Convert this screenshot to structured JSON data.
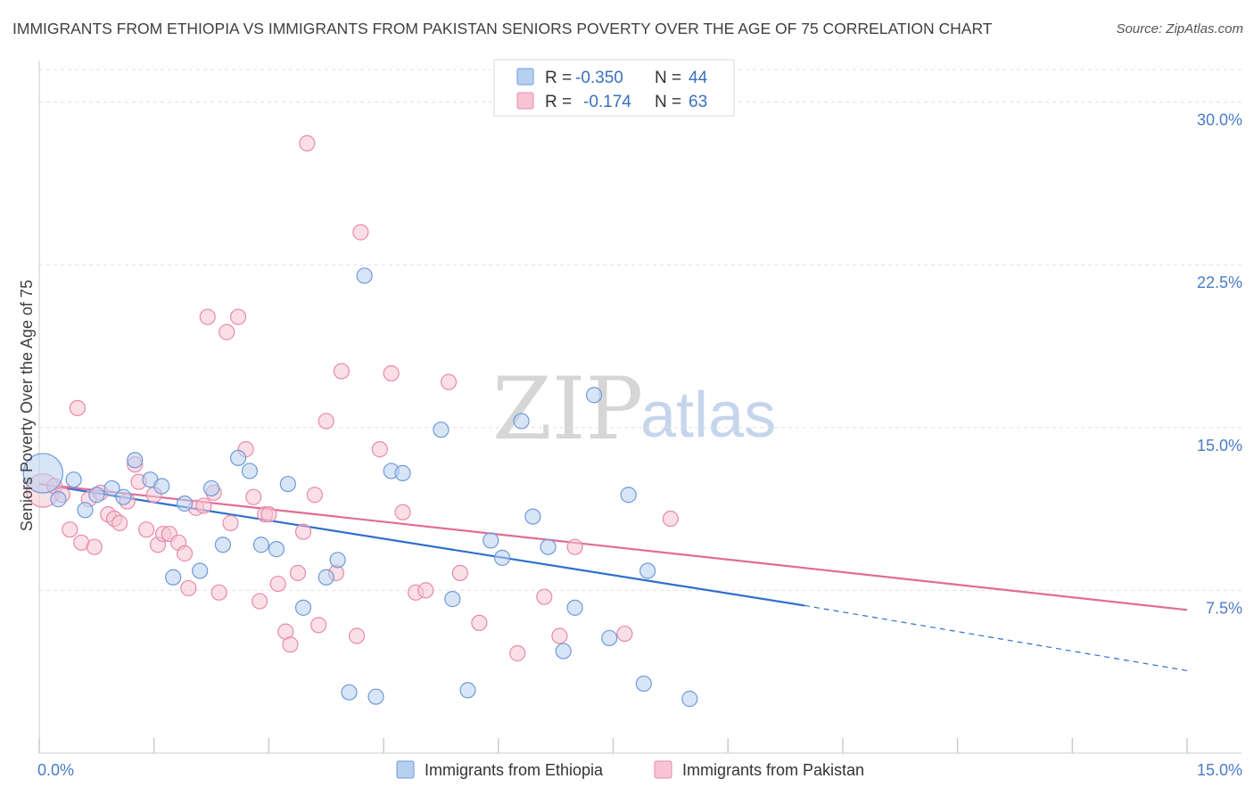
{
  "header": {
    "title": "IMMIGRANTS FROM ETHIOPIA VS IMMIGRANTS FROM PAKISTAN SENIORS POVERTY OVER THE AGE OF 75 CORRELATION CHART",
    "source": "Source: ZipAtlas.com"
  },
  "watermark": {
    "zip": "ZIP",
    "atlas": "atlas"
  },
  "legend": {
    "rows": [
      {
        "r_label": "R =",
        "r_value": "-0.350",
        "n_label": "N =",
        "n_value": "44"
      },
      {
        "r_label": "R =",
        "r_value": "-0.174",
        "n_label": "N =",
        "n_value": "63"
      }
    ]
  },
  "colors": {
    "ethiopia_fill": "#b8d0f0",
    "ethiopia_stroke": "#6f9ad8",
    "ethiopia_line": "#2f6fcc",
    "pakistan_fill": "#f7c4d4",
    "pakistan_stroke": "#e88aa8",
    "pakistan_line": "#e06c98",
    "grid": "#e0e0e0",
    "tick_label": "#4a7cc4"
  },
  "chart_data": {
    "type": "scatter",
    "title": "IMMIGRANTS FROM ETHIOPIA VS IMMIGRANTS FROM PAKISTAN SENIORS POVERTY OVER THE AGE OF 75 CORRELATION CHART",
    "xlabel": "",
    "ylabel": "Seniors Poverty Over the Age of 75",
    "xlim": [
      0,
      15
    ],
    "ylim": [
      0,
      31.5
    ],
    "x_tick_labels": [
      "0.0%",
      "15.0%"
    ],
    "y_ticks": [
      7.5,
      15.0,
      22.5,
      30.0
    ],
    "y_tick_labels": [
      "7.5%",
      "15.0%",
      "22.5%",
      "30.0%"
    ],
    "grid": true,
    "series": [
      {
        "name": "Immigrants from Ethiopia",
        "R": -0.35,
        "N": 44,
        "trend": {
          "x0": 0,
          "y0": 12.4,
          "x1": 10.0,
          "y1": 6.8,
          "dash_to_x": 15.0,
          "dash_to_y": 3.8
        },
        "points": [
          [
            0.05,
            12.9,
            2.6
          ],
          [
            0.25,
            11.7,
            1
          ],
          [
            0.45,
            12.6,
            1
          ],
          [
            0.6,
            11.2,
            1
          ],
          [
            0.75,
            11.9,
            1
          ],
          [
            0.95,
            12.2,
            1
          ],
          [
            1.1,
            11.8,
            1
          ],
          [
            1.25,
            13.5,
            1
          ],
          [
            1.45,
            12.6,
            1
          ],
          [
            1.6,
            12.3,
            1
          ],
          [
            1.75,
            8.1,
            1
          ],
          [
            1.9,
            11.5,
            1
          ],
          [
            2.1,
            8.4,
            1
          ],
          [
            2.25,
            12.2,
            1
          ],
          [
            2.4,
            9.6,
            1
          ],
          [
            2.6,
            13.6,
            1
          ],
          [
            2.75,
            13.0,
            1
          ],
          [
            2.9,
            9.6,
            1
          ],
          [
            3.1,
            9.4,
            1
          ],
          [
            3.25,
            12.4,
            1
          ],
          [
            3.45,
            6.7,
            1
          ],
          [
            3.75,
            8.1,
            1
          ],
          [
            3.9,
            8.9,
            1
          ],
          [
            4.05,
            2.8,
            1
          ],
          [
            4.25,
            22.0,
            1
          ],
          [
            4.4,
            2.6,
            1
          ],
          [
            4.6,
            13.0,
            1
          ],
          [
            4.75,
            12.9,
            1
          ],
          [
            5.25,
            14.9,
            1
          ],
          [
            5.4,
            7.1,
            1
          ],
          [
            5.6,
            2.9,
            1
          ],
          [
            5.9,
            9.8,
            1
          ],
          [
            6.05,
            9.0,
            1
          ],
          [
            6.3,
            15.3,
            1
          ],
          [
            6.45,
            10.9,
            1
          ],
          [
            6.65,
            9.5,
            1
          ],
          [
            6.85,
            4.7,
            1
          ],
          [
            7.0,
            6.7,
            1
          ],
          [
            7.25,
            16.5,
            1
          ],
          [
            7.45,
            5.3,
            1
          ],
          [
            7.7,
            11.9,
            1
          ],
          [
            7.9,
            3.2,
            1
          ],
          [
            7.95,
            8.4,
            1
          ],
          [
            8.5,
            2.5,
            1
          ]
        ]
      },
      {
        "name": "Immigrants from Pakistan",
        "R": -0.174,
        "N": 63,
        "trend": {
          "x0": 0,
          "y0": 12.4,
          "x1": 15.0,
          "y1": 6.6
        },
        "points": [
          [
            0.05,
            12.1,
            2.2
          ],
          [
            0.2,
            12.3,
            1
          ],
          [
            0.3,
            11.9,
            1
          ],
          [
            0.4,
            10.3,
            1
          ],
          [
            0.5,
            15.9,
            1
          ],
          [
            0.55,
            9.7,
            1
          ],
          [
            0.65,
            11.7,
            1
          ],
          [
            0.72,
            9.5,
            1
          ],
          [
            0.8,
            12.0,
            1
          ],
          [
            0.9,
            11.0,
            1
          ],
          [
            0.98,
            10.8,
            1
          ],
          [
            1.05,
            10.6,
            1
          ],
          [
            1.15,
            11.6,
            1
          ],
          [
            1.25,
            13.3,
            1
          ],
          [
            1.3,
            12.5,
            1
          ],
          [
            1.4,
            10.3,
            1
          ],
          [
            1.5,
            11.9,
            1
          ],
          [
            1.55,
            9.6,
            1
          ],
          [
            1.62,
            10.1,
            1
          ],
          [
            1.7,
            10.1,
            1
          ],
          [
            1.82,
            9.7,
            1
          ],
          [
            1.9,
            9.2,
            1
          ],
          [
            1.95,
            7.6,
            1
          ],
          [
            2.05,
            11.3,
            1
          ],
          [
            2.15,
            11.4,
            1
          ],
          [
            2.2,
            20.1,
            1
          ],
          [
            2.28,
            12.0,
            1
          ],
          [
            2.35,
            7.4,
            1
          ],
          [
            2.45,
            19.4,
            1
          ],
          [
            2.5,
            10.6,
            1
          ],
          [
            2.6,
            20.1,
            1
          ],
          [
            2.7,
            14.0,
            1
          ],
          [
            2.8,
            11.8,
            1
          ],
          [
            2.88,
            7.0,
            1
          ],
          [
            2.95,
            11.0,
            1
          ],
          [
            3.0,
            11.0,
            1
          ],
          [
            3.12,
            7.8,
            1
          ],
          [
            3.22,
            5.6,
            1
          ],
          [
            3.28,
            5.0,
            1
          ],
          [
            3.38,
            8.3,
            1
          ],
          [
            3.45,
            10.2,
            1
          ],
          [
            3.5,
            28.1,
            1
          ],
          [
            3.6,
            11.9,
            1
          ],
          [
            3.65,
            5.9,
            1
          ],
          [
            3.75,
            15.3,
            1
          ],
          [
            3.88,
            8.3,
            1
          ],
          [
            3.95,
            17.6,
            1
          ],
          [
            4.15,
            5.4,
            1
          ],
          [
            4.2,
            24.0,
            1
          ],
          [
            4.45,
            14.0,
            1
          ],
          [
            4.6,
            17.5,
            1
          ],
          [
            4.75,
            11.1,
            1
          ],
          [
            4.92,
            7.4,
            1
          ],
          [
            5.05,
            7.5,
            1
          ],
          [
            5.35,
            17.1,
            1
          ],
          [
            5.5,
            8.3,
            1
          ],
          [
            5.75,
            6.0,
            1
          ],
          [
            6.25,
            4.6,
            1
          ],
          [
            6.6,
            7.2,
            1
          ],
          [
            6.8,
            5.4,
            1
          ],
          [
            7.0,
            9.5,
            1
          ],
          [
            7.65,
            5.5,
            1
          ],
          [
            8.25,
            10.8,
            1
          ]
        ]
      }
    ]
  }
}
